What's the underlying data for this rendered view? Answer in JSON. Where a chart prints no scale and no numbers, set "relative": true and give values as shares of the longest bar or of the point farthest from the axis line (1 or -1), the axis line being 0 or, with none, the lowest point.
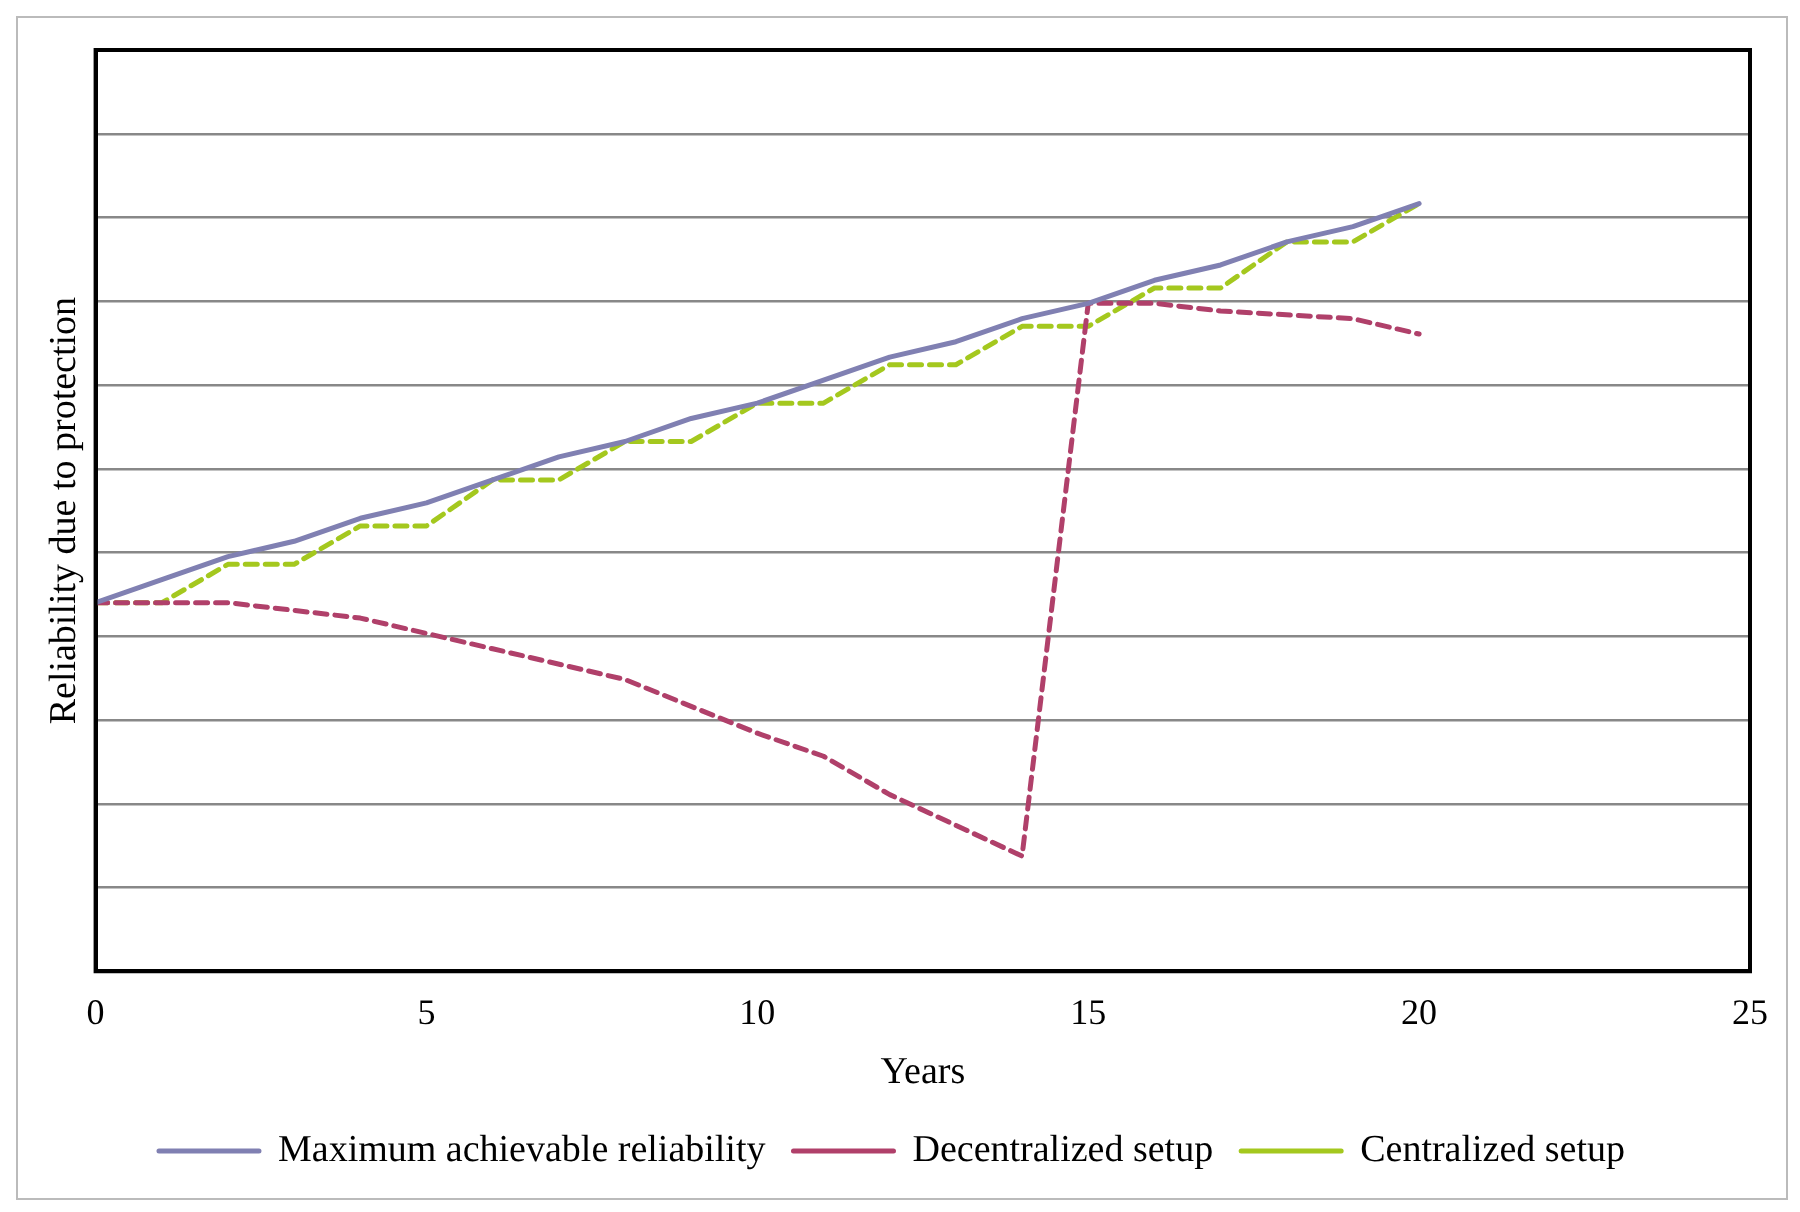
{
  "chart_data": {
    "type": "line",
    "relative": true,
    "xlabel": "Years",
    "ylabel": "Reliability due to protection",
    "xlim": [
      0,
      25
    ],
    "xticks": [
      0,
      5,
      10,
      15,
      20,
      25
    ],
    "grid": "y",
    "legend": "bottom",
    "marker": "none",
    "series": [
      {
        "name": "Maximum achievable reliability",
        "color": "#8080b2",
        "line_style": "solid",
        "x": [
          0,
          1,
          2,
          3,
          4,
          5,
          6,
          7,
          8,
          9,
          10,
          11,
          12,
          13,
          14,
          15,
          16,
          17,
          18,
          19,
          20
        ],
        "values": [
          0.48,
          0.51,
          0.54,
          0.56,
          0.59,
          0.61,
          0.64,
          0.67,
          0.69,
          0.72,
          0.74,
          0.77,
          0.8,
          0.82,
          0.85,
          0.87,
          0.9,
          0.92,
          0.95,
          0.97,
          1.0
        ]
      },
      {
        "name": "Decentralized setup",
        "color": "#b0406a",
        "line_style": "dashed",
        "x": [
          0,
          1,
          2,
          4,
          6,
          8,
          10,
          11,
          12,
          13,
          14,
          15,
          16,
          17,
          19,
          20
        ],
        "values": [
          0.48,
          0.48,
          0.48,
          0.46,
          0.42,
          0.38,
          0.31,
          0.28,
          0.23,
          0.19,
          0.15,
          0.87,
          0.87,
          0.86,
          0.85,
          0.83
        ]
      },
      {
        "name": "Centralized setup",
        "color": "#a4c81e",
        "line_style": "dashed",
        "x": [
          0,
          1,
          2,
          3,
          4,
          5,
          6,
          7,
          8,
          9,
          10,
          11,
          12,
          13,
          14,
          15,
          16,
          17,
          18,
          19,
          20
        ],
        "values": [
          0.48,
          0.48,
          0.53,
          0.53,
          0.58,
          0.58,
          0.64,
          0.64,
          0.69,
          0.69,
          0.74,
          0.74,
          0.79,
          0.79,
          0.84,
          0.84,
          0.89,
          0.89,
          0.95,
          0.95,
          1.0
        ]
      }
    ]
  }
}
